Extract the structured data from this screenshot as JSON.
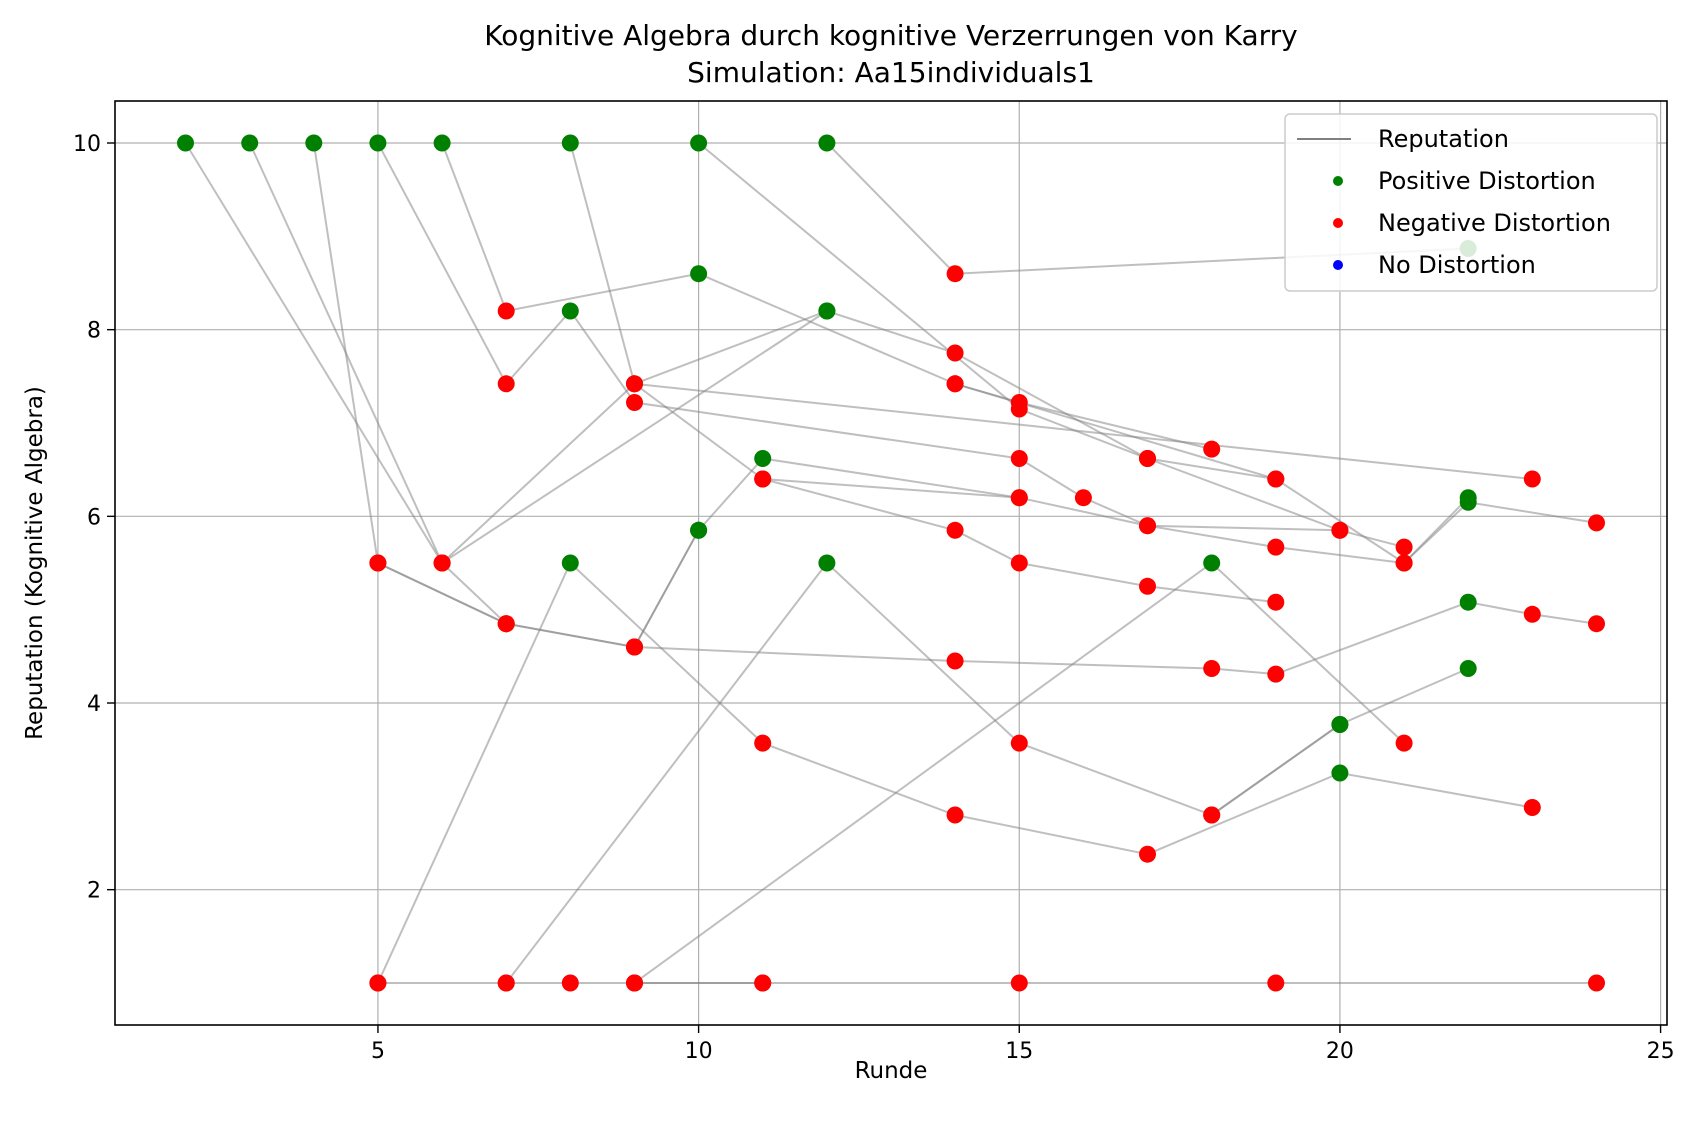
{
  "chart_data": {
    "type": "scatter",
    "title": "Kognitive Algebra durch kognitive Verzerrungen von Karry",
    "subtitle": "Simulation: Aa15individuals1",
    "xlabel": "Runde",
    "ylabel": "Reputation (Kognitive Algebra)",
    "xlim": [
      0.9,
      25.1
    ],
    "ylim": [
      0.55,
      10.45
    ],
    "x_ticks": [
      5,
      10,
      15,
      20,
      25
    ],
    "y_ticks": [
      2,
      4,
      6,
      8,
      10
    ],
    "grid": true,
    "legend_position": "top-right",
    "legend": [
      {
        "label": "Reputation",
        "kind": "line",
        "color": "#808080"
      },
      {
        "label": "Positive Distortion",
        "kind": "dot",
        "color": "#008000"
      },
      {
        "label": "Negative Distortion",
        "kind": "dot",
        "color": "#ff0000"
      },
      {
        "label": "No Distortion",
        "kind": "dot",
        "color": "#0000ff"
      }
    ],
    "series": [
      {
        "points": [
          [
            2,
            10,
            "p"
          ],
          [
            6,
            5.5,
            "n"
          ],
          [
            12,
            8.2,
            "p"
          ],
          [
            14,
            7.75,
            "n"
          ],
          [
            17,
            6.62,
            "n"
          ],
          [
            19,
            6.4,
            "n"
          ],
          [
            21,
            5.5,
            "n"
          ],
          [
            22,
            6.2,
            "p"
          ]
        ]
      },
      {
        "points": [
          [
            3,
            10,
            "p"
          ],
          [
            6,
            5.5,
            "n"
          ],
          [
            7,
            4.85,
            "n"
          ],
          [
            9,
            4.6,
            "n"
          ],
          [
            14,
            4.45,
            "n"
          ],
          [
            18,
            4.37,
            "n"
          ],
          [
            19,
            4.31,
            "n"
          ],
          [
            22,
            5.08,
            "p"
          ],
          [
            23,
            4.95,
            "n"
          ],
          [
            24,
            4.85,
            "n"
          ]
        ]
      },
      {
        "points": [
          [
            4,
            10,
            "p"
          ],
          [
            5,
            5.5,
            "n"
          ],
          [
            7,
            4.85,
            "n"
          ],
          [
            9,
            4.6,
            "n"
          ],
          [
            10,
            5.85,
            "p"
          ],
          [
            11,
            6.62,
            "p"
          ],
          [
            15,
            6.2,
            "n"
          ],
          [
            17,
            5.9,
            "n"
          ],
          [
            20,
            5.85,
            "n"
          ]
        ]
      },
      {
        "points": [
          [
            5,
            10,
            "p"
          ],
          [
            7,
            7.42,
            "n"
          ],
          [
            8,
            8.2,
            "p"
          ],
          [
            9,
            7.22,
            "n"
          ],
          [
            15,
            6.62,
            "n"
          ],
          [
            16,
            6.2,
            "n"
          ],
          [
            17,
            5.9,
            "n"
          ],
          [
            19,
            5.67,
            "n"
          ],
          [
            21,
            5.5,
            "n"
          ],
          [
            22,
            6.15,
            "p"
          ],
          [
            24,
            5.93,
            "n"
          ]
        ]
      },
      {
        "points": [
          [
            6,
            10,
            "p"
          ],
          [
            7,
            8.2,
            "n"
          ],
          [
            10,
            8.6,
            "p"
          ],
          [
            14,
            7.42,
            "n"
          ],
          [
            15,
            7.22,
            "n"
          ],
          [
            18,
            6.72,
            "n"
          ]
        ]
      },
      {
        "points": [
          [
            8,
            10,
            "p"
          ],
          [
            9,
            7.42,
            "n"
          ],
          [
            23,
            6.4,
            "n"
          ]
        ]
      },
      {
        "points": [
          [
            10,
            10,
            "p"
          ],
          [
            15,
            7.15,
            "n"
          ],
          [
            17,
            6.62,
            "n"
          ],
          [
            20,
            5.85,
            "n"
          ],
          [
            21,
            5.67,
            "n"
          ]
        ]
      },
      {
        "points": [
          [
            12,
            10,
            "p"
          ],
          [
            14,
            8.6,
            "n"
          ],
          [
            22,
            8.87,
            "p"
          ]
        ]
      },
      {
        "points": [
          [
            5,
            1,
            "n"
          ],
          [
            7,
            1,
            "n"
          ],
          [
            8,
            1,
            "n"
          ],
          [
            9,
            1,
            "n"
          ],
          [
            11,
            1,
            "n"
          ],
          [
            15,
            1,
            "n"
          ],
          [
            19,
            1,
            "n"
          ],
          [
            24,
            1,
            "n"
          ]
        ]
      },
      {
        "points": [
          [
            5,
            1,
            "n"
          ],
          [
            8,
            5.5,
            "p"
          ],
          [
            11,
            3.57,
            "n"
          ],
          [
            14,
            2.8,
            "n"
          ],
          [
            17,
            2.38,
            "n"
          ],
          [
            20,
            3.25,
            "p"
          ],
          [
            23,
            2.88,
            "n"
          ]
        ]
      },
      {
        "points": [
          [
            7,
            1,
            "n"
          ],
          [
            12,
            5.5,
            "p"
          ],
          [
            15,
            3.57,
            "n"
          ],
          [
            18,
            2.8,
            "n"
          ],
          [
            20,
            3.77,
            "p"
          ]
        ]
      },
      {
        "points": [
          [
            9,
            1,
            "n"
          ],
          [
            18,
            5.5,
            "p"
          ],
          [
            21,
            3.57,
            "n"
          ]
        ]
      },
      {
        "points": [
          [
            5,
            5.5,
            "n"
          ],
          [
            7,
            4.85,
            "n"
          ]
        ]
      },
      {
        "points": [
          [
            6,
            5.5,
            "n"
          ],
          [
            9,
            7.42,
            "n"
          ],
          [
            12,
            8.2,
            "p"
          ]
        ]
      },
      {
        "points": [
          [
            9,
            4.6,
            "n"
          ],
          [
            10,
            5.85,
            "p"
          ]
        ]
      },
      {
        "points": [
          [
            9,
            7.42,
            "n"
          ],
          [
            11,
            6.4,
            "n"
          ],
          [
            14,
            5.85,
            "n"
          ],
          [
            15,
            5.5,
            "n"
          ],
          [
            17,
            5.25,
            "n"
          ],
          [
            19,
            5.08,
            "n"
          ]
        ]
      },
      {
        "points": [
          [
            11,
            6.4,
            "n"
          ],
          [
            15,
            6.2,
            "n"
          ]
        ]
      },
      {
        "points": [
          [
            9,
            1,
            "n"
          ],
          [
            11,
            1,
            "n"
          ]
        ]
      },
      {
        "points": [
          [
            18,
            2.8,
            "n"
          ],
          [
            20,
            3.77,
            "p"
          ],
          [
            22,
            4.37,
            "p"
          ]
        ]
      },
      {
        "points": [
          [
            14,
            7.42,
            "n"
          ],
          [
            19,
            6.4,
            "n"
          ]
        ]
      }
    ]
  }
}
